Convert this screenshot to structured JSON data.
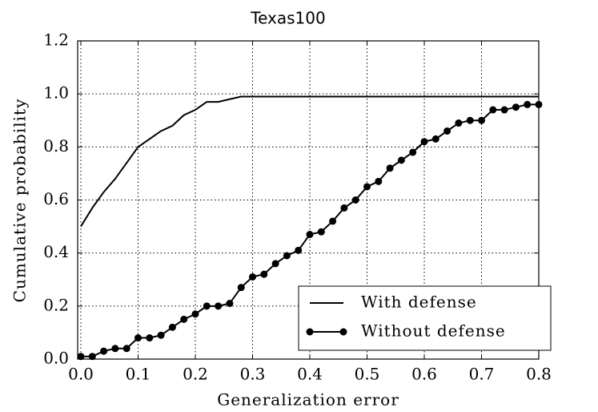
{
  "chart_data": {
    "type": "line",
    "title": "Texas100",
    "xlabel": "Generalization error",
    "ylabel": "Cumulative probability",
    "xlim": [
      0,
      0.8
    ],
    "ylim": [
      0,
      1.2
    ],
    "xticks": [
      {
        "value": 0,
        "label": "0.0"
      },
      0.1,
      0.2,
      0.3,
      0.4,
      0.5,
      0.6,
      0.7,
      0.8
    ],
    "yticks": [
      {
        "value": 0,
        "label": "0.0"
      },
      0.2,
      0.4,
      0.6,
      0.8,
      {
        "value": 1,
        "label": "1.0"
      },
      1.2
    ],
    "grid": true,
    "legend": "lower right",
    "series": [
      {
        "name": "With defense",
        "color": "#000000",
        "x": [
          0,
          0.02,
          0.04,
          0.06,
          0.08,
          0.1,
          0.12,
          0.14,
          0.16,
          0.18,
          0.2,
          0.22,
          0.24,
          0.26,
          0.28,
          0.3,
          0.8
        ],
        "values": [
          0.5,
          0.57,
          0.63,
          0.68,
          0.74,
          0.8,
          0.83,
          0.86,
          0.88,
          0.92,
          0.94,
          0.97,
          0.97,
          0.98,
          0.99,
          0.99,
          0.99
        ]
      },
      {
        "name": "Without defense",
        "color": "#000000",
        "marker": "circle",
        "x": [
          0,
          0.02,
          0.04,
          0.06,
          0.08,
          0.1,
          0.12,
          0.14,
          0.16,
          0.18,
          0.2,
          0.22,
          0.24,
          0.26,
          0.28,
          0.3,
          0.32,
          0.34,
          0.36,
          0.38,
          0.4,
          0.42,
          0.44,
          0.46,
          0.48,
          0.5,
          0.52,
          0.54,
          0.56,
          0.58,
          0.6,
          0.62,
          0.64,
          0.66,
          0.68,
          0.7,
          0.72,
          0.74,
          0.76,
          0.78,
          0.8
        ],
        "values": [
          0.01,
          0.01,
          0.03,
          0.04,
          0.04,
          0.08,
          0.08,
          0.09,
          0.12,
          0.15,
          0.17,
          0.2,
          0.2,
          0.21,
          0.27,
          0.31,
          0.32,
          0.36,
          0.39,
          0.41,
          0.47,
          0.48,
          0.52,
          0.57,
          0.6,
          0.65,
          0.67,
          0.72,
          0.75,
          0.78,
          0.82,
          0.83,
          0.86,
          0.89,
          0.9,
          0.9,
          0.94,
          0.94,
          0.95,
          0.96,
          0.96
        ]
      }
    ]
  }
}
